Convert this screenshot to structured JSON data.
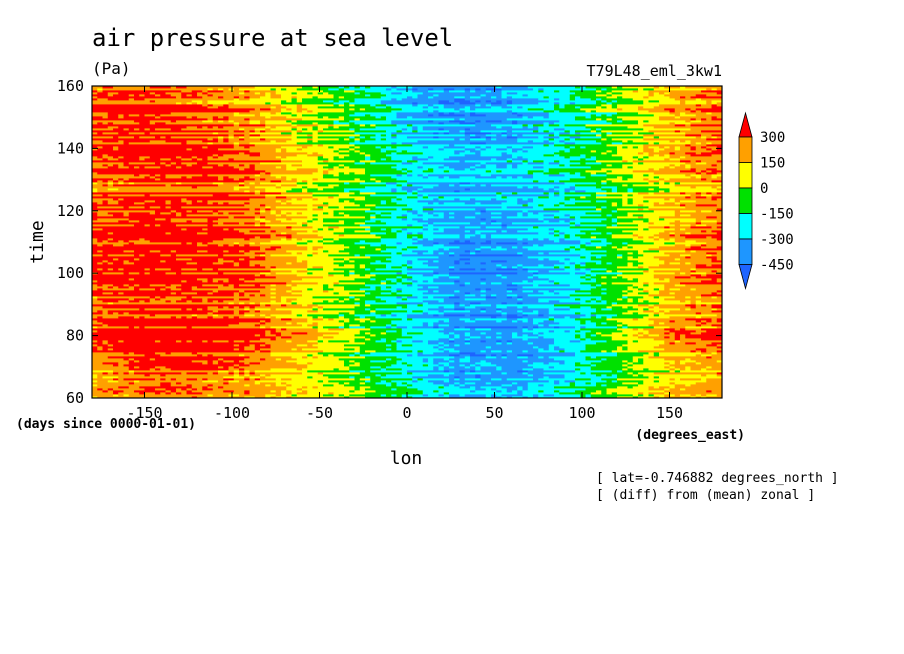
{
  "chart_data": {
    "type": "heatmap",
    "title": "air pressure at sea level",
    "units": "(Pa)",
    "model": "T79L48_eml_3kw1",
    "xlabel": "lon",
    "ylabel": "time",
    "x_units": "(degrees_east)",
    "y_units": "(days since 0000-01-01)",
    "notes": [
      "[ lat=-0.746882 degrees_north ]",
      "[ (diff) from (mean) zonal ]"
    ],
    "xlim": [
      -180,
      180
    ],
    "ylim": [
      60,
      160
    ],
    "x_ticks": [
      -150,
      -100,
      -50,
      0,
      50,
      100,
      150
    ],
    "y_ticks": [
      60,
      80,
      100,
      120,
      140,
      160
    ],
    "colorbar": {
      "levels": [
        -450,
        -300,
        -150,
        0,
        150,
        300
      ],
      "level_labels": [
        "300",
        "150",
        "0",
        "-150",
        "-300",
        "-450"
      ],
      "colors": [
        "#1e64ff",
        "#1e96ff",
        "#00ffff",
        "#00e100",
        "#ffff00",
        "#ffa000",
        "#ff0000"
      ]
    },
    "x": [
      -180,
      -150,
      -120,
      -90,
      -60,
      -30,
      0,
      30,
      60,
      90,
      120,
      150,
      180
    ],
    "y": [
      60,
      70,
      80,
      90,
      100,
      110,
      120,
      130,
      140,
      150,
      160
    ],
    "z": [
      [
        200,
        240,
        220,
        180,
        80,
        -20,
        -160,
        -300,
        -320,
        -200,
        -20,
        150,
        200
      ],
      [
        220,
        320,
        340,
        260,
        120,
        -30,
        -200,
        -330,
        -360,
        -260,
        -80,
        120,
        200
      ],
      [
        300,
        380,
        360,
        300,
        140,
        -40,
        -260,
        -420,
        -430,
        -320,
        -80,
        200,
        300
      ],
      [
        260,
        320,
        300,
        240,
        100,
        -60,
        -220,
        -360,
        -360,
        -260,
        -60,
        150,
        240
      ],
      [
        330,
        380,
        360,
        320,
        140,
        -20,
        -240,
        -420,
        -400,
        -280,
        -60,
        180,
        310
      ],
      [
        310,
        370,
        350,
        290,
        120,
        -40,
        -240,
        -380,
        -360,
        -260,
        -70,
        150,
        280
      ],
      [
        280,
        340,
        320,
        260,
        110,
        -30,
        -250,
        -350,
        -320,
        -240,
        -60,
        140,
        260
      ],
      [
        250,
        300,
        320,
        260,
        90,
        -40,
        -220,
        -300,
        -280,
        -200,
        -40,
        120,
        230
      ],
      [
        300,
        360,
        320,
        240,
        80,
        -60,
        -260,
        -360,
        -330,
        -220,
        -40,
        160,
        280
      ],
      [
        330,
        380,
        300,
        220,
        60,
        -80,
        -280,
        -380,
        -340,
        -200,
        -30,
        170,
        300
      ],
      [
        300,
        340,
        280,
        200,
        40,
        -100,
        -300,
        -360,
        -300,
        -160,
        20,
        200,
        300
      ]
    ]
  }
}
